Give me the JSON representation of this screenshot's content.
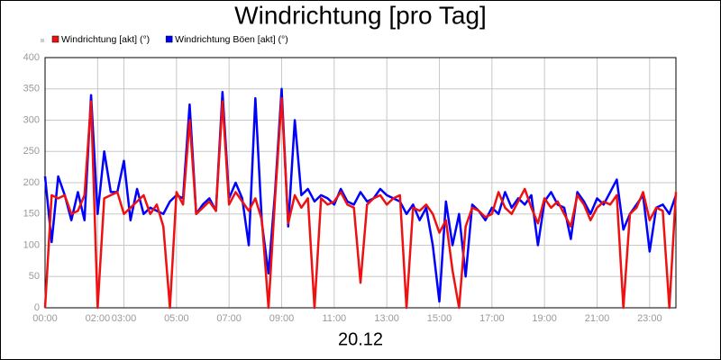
{
  "chart_data": {
    "type": "line",
    "title": "Windrichtung [pro Tag]",
    "x_label": "20.12",
    "x": [
      0,
      0.25,
      0.5,
      0.75,
      1,
      1.25,
      1.5,
      1.75,
      2,
      2.25,
      2.5,
      2.75,
      3,
      3.25,
      3.5,
      3.75,
      4,
      4.25,
      4.5,
      4.75,
      5,
      5.25,
      5.5,
      5.75,
      6,
      6.25,
      6.5,
      6.75,
      7,
      7.25,
      7.5,
      7.75,
      8,
      8.25,
      8.5,
      8.75,
      9,
      9.25,
      9.5,
      9.75,
      10,
      10.25,
      10.5,
      10.75,
      11,
      11.25,
      11.5,
      11.75,
      12,
      12.25,
      12.5,
      12.75,
      13,
      13.25,
      13.5,
      13.75,
      14,
      14.25,
      14.5,
      14.75,
      15,
      15.25,
      15.5,
      15.75,
      16,
      16.25,
      16.5,
      16.75,
      17,
      17.25,
      17.5,
      17.75,
      18,
      18.25,
      18.5,
      18.75,
      19,
      19.25,
      19.5,
      19.75,
      20,
      20.25,
      20.5,
      20.75,
      21,
      21.25,
      21.5,
      21.75,
      22,
      22.25,
      22.5,
      22.75,
      23,
      23.25,
      23.5,
      23.75,
      24
    ],
    "series": [
      {
        "name": "Windrichtung Böen [akt] (°)",
        "color": "#0000ff",
        "values": [
          210,
          105,
          210,
          180,
          140,
          185,
          140,
          340,
          150,
          250,
          185,
          185,
          235,
          140,
          190,
          150,
          160,
          155,
          150,
          170,
          180,
          175,
          325,
          150,
          165,
          175,
          155,
          345,
          175,
          200,
          175,
          100,
          335,
          135,
          55,
          185,
          350,
          130,
          300,
          180,
          190,
          170,
          180,
          175,
          165,
          190,
          170,
          165,
          185,
          170,
          175,
          190,
          180,
          175,
          170,
          150,
          165,
          140,
          160,
          100,
          10,
          170,
          100,
          150,
          50,
          165,
          155,
          140,
          160,
          150,
          185,
          160,
          175,
          165,
          180,
          100,
          170,
          185,
          165,
          160,
          110,
          185,
          170,
          150,
          175,
          165,
          185,
          205,
          125,
          150,
          165,
          180,
          90,
          160,
          165,
          150,
          180
        ]
      },
      {
        "name": "Windrichtung [akt] (°)",
        "color": "#ee1111",
        "values": [
          0,
          180,
          175,
          180,
          150,
          155,
          180,
          330,
          0,
          175,
          180,
          185,
          150,
          160,
          170,
          180,
          150,
          165,
          130,
          0,
          185,
          165,
          300,
          150,
          160,
          170,
          155,
          330,
          165,
          185,
          170,
          155,
          175,
          140,
          0,
          175,
          335,
          135,
          180,
          160,
          175,
          0,
          175,
          165,
          170,
          185,
          165,
          160,
          40,
          165,
          175,
          180,
          165,
          175,
          180,
          0,
          160,
          155,
          165,
          150,
          120,
          140,
          60,
          0,
          130,
          160,
          155,
          145,
          150,
          185,
          160,
          150,
          170,
          190,
          160,
          135,
          175,
          160,
          170,
          150,
          130,
          180,
          165,
          140,
          160,
          170,
          165,
          180,
          0,
          150,
          160,
          185,
          140,
          160,
          155,
          0,
          185
        ]
      }
    ],
    "legend_order": [
      1,
      0
    ],
    "xlim": [
      0,
      24
    ],
    "xticks": [
      {
        "value": 0,
        "label": "00:00"
      },
      {
        "value": 2,
        "label": "02:00"
      },
      {
        "value": 3,
        "label": "03:00"
      },
      {
        "value": 5,
        "label": "05:00"
      },
      {
        "value": 7,
        "label": "07:00"
      },
      {
        "value": 9,
        "label": "09:00"
      },
      {
        "value": 11,
        "label": "11:00"
      },
      {
        "value": 13,
        "label": "13:00"
      },
      {
        "value": 15,
        "label": "15:00"
      },
      {
        "value": 17,
        "label": "17:00"
      },
      {
        "value": 19,
        "label": "19:00"
      },
      {
        "value": 21,
        "label": "21:00"
      },
      {
        "value": 23,
        "label": "23:00"
      }
    ],
    "ylim": [
      0,
      400
    ],
    "yticks": [
      0,
      50,
      100,
      150,
      200,
      250,
      300,
      350,
      400
    ],
    "grid": true
  }
}
